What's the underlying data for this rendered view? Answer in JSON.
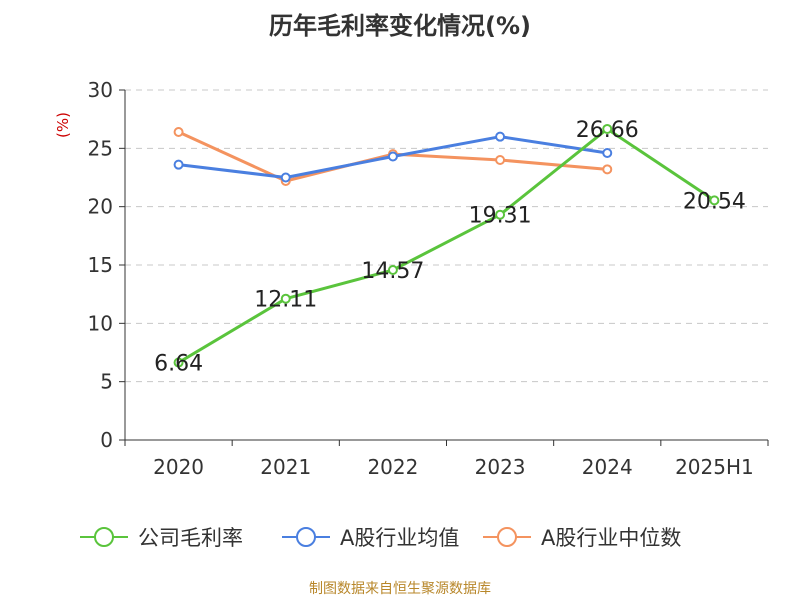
{
  "title": "历年毛利率变化情况(%)",
  "footer": {
    "text": "制图数据来自恒生聚源数据库"
  },
  "colors": {
    "company": "#5ac43c",
    "industry_avg": "#4a7fe0",
    "industry_median": "#f4935f",
    "ylabel": "#cc0000",
    "footer": "#b8872a"
  },
  "chart_data": {
    "type": "line",
    "categories": [
      "2020",
      "2021",
      "2022",
      "2023",
      "2024",
      "2025H1"
    ],
    "ylabel": "(%)",
    "ylim": [
      0,
      30
    ],
    "yticks": [
      0,
      5,
      10,
      15,
      20,
      25,
      30
    ],
    "grid": true,
    "legend_position": "bottom",
    "series": [
      {
        "name": "公司毛利率",
        "values": [
          6.64,
          12.11,
          14.57,
          19.31,
          26.66,
          20.54
        ],
        "show_labels": true
      },
      {
        "name": "A股行业均值",
        "values": [
          23.6,
          22.5,
          24.3,
          26.0,
          24.6,
          null
        ],
        "show_labels": false
      },
      {
        "name": "A股行业中位数",
        "values": [
          26.4,
          22.2,
          24.5,
          24.0,
          23.2,
          null
        ],
        "show_labels": false
      }
    ]
  }
}
